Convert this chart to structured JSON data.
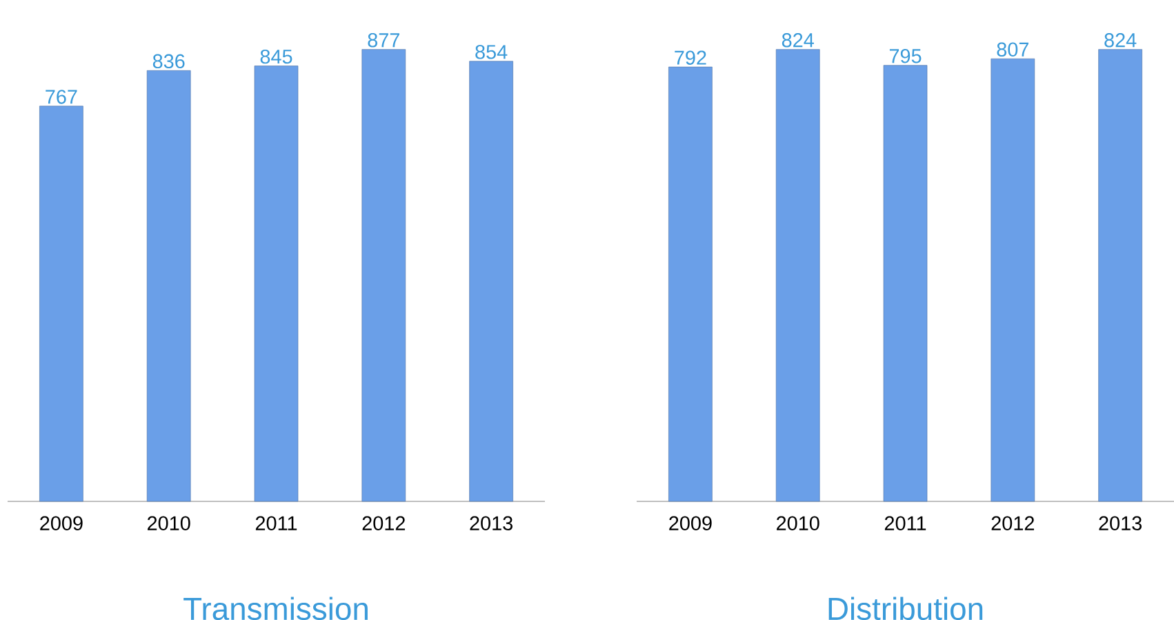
{
  "chart_data": [
    {
      "type": "bar",
      "title": "Transmission",
      "categories": [
        "2009",
        "2010",
        "2011",
        "2012",
        "2013"
      ],
      "values": [
        767,
        836,
        845,
        877,
        854
      ],
      "color": "#6a9fe8",
      "data_labels": true
    },
    {
      "type": "bar",
      "title": "Distribution",
      "categories": [
        "2009",
        "2010",
        "2011",
        "2012",
        "2013"
      ],
      "values": [
        792,
        824,
        795,
        807,
        824
      ],
      "color": "#6a9fe8",
      "data_labels": true
    }
  ]
}
